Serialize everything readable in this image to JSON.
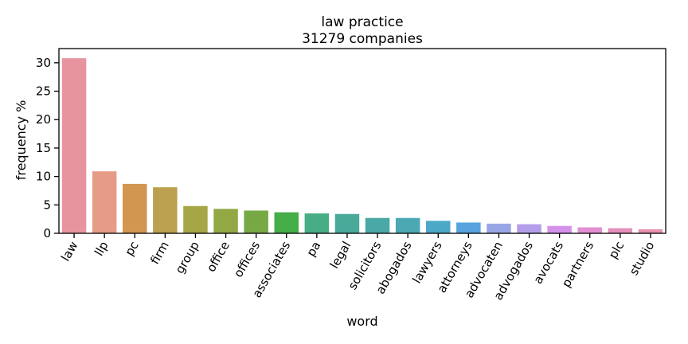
{
  "chart_data": {
    "type": "bar",
    "title": "law practice",
    "subtitle": "31279 companies",
    "xlabel": "word",
    "ylabel": "frequency %",
    "ylim": [
      0,
      32.5
    ],
    "yticks": [
      0,
      5,
      10,
      15,
      20,
      25,
      30
    ],
    "grid": false,
    "legend": "none",
    "categories": [
      "law",
      "llp",
      "pc",
      "firm",
      "group",
      "office",
      "offices",
      "associates",
      "pa",
      "legal",
      "solicitors",
      "abogados",
      "lawyers",
      "attorneys",
      "advocaten",
      "advogados",
      "avocats",
      "partners",
      "plc",
      "studio"
    ],
    "values": [
      30.8,
      10.9,
      8.7,
      8.1,
      4.8,
      4.3,
      4.0,
      3.7,
      3.5,
      3.4,
      2.7,
      2.7,
      2.2,
      1.9,
      1.7,
      1.6,
      1.3,
      1.05,
      0.9,
      0.7
    ],
    "colors": [
      "#e8949f",
      "#e69b86",
      "#d39650",
      "#bba14f",
      "#a5a644",
      "#92a844",
      "#76a944",
      "#45ae48",
      "#47ad85",
      "#49aa9a",
      "#4aa8a6",
      "#4aa8b2",
      "#4ca8c7",
      "#57a3dd",
      "#99a6e5",
      "#b49de9",
      "#d492ea",
      "#e48fd3",
      "#e48fbc",
      "#e78fab"
    ]
  }
}
